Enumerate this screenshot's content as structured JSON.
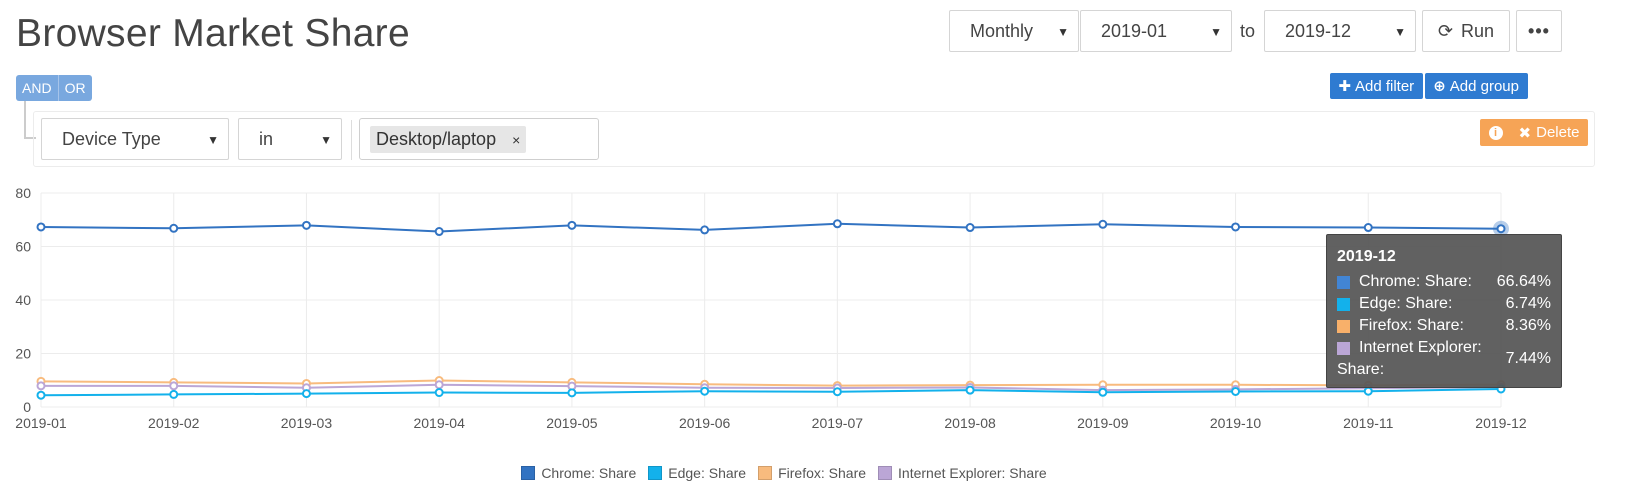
{
  "page": {
    "title": "Browser Market Share"
  },
  "toolbar": {
    "period": "Monthly",
    "from": "2019-01",
    "to_label": "to",
    "to": "2019-12",
    "run_label": "Run",
    "more_label": "•••"
  },
  "query": {
    "and_label": "AND",
    "or_label": "OR",
    "add_filter_label": "Add filter",
    "add_group_label": "Add group",
    "rule": {
      "field": "Device Type",
      "operator": "in",
      "value": "Desktop/laptop",
      "remove": "×"
    },
    "delete_label": "Delete"
  },
  "chart_data": {
    "type": "line",
    "x": [
      "2019-01",
      "2019-02",
      "2019-03",
      "2019-04",
      "2019-05",
      "2019-06",
      "2019-07",
      "2019-08",
      "2019-09",
      "2019-10",
      "2019-11",
      "2019-12"
    ],
    "ylim": [
      0,
      80
    ],
    "yticks": [
      0,
      20,
      40,
      60,
      80
    ],
    "grid": true,
    "legend_position": "bottom",
    "series": [
      {
        "name": "Chrome: Share",
        "color": "#3273c2",
        "values": [
          67.3,
          66.8,
          67.9,
          65.6,
          67.9,
          66.2,
          68.5,
          67.1,
          68.3,
          67.3,
          67.1,
          66.64
        ]
      },
      {
        "name": "Edge: Share",
        "color": "#13b1eb",
        "values": [
          4.4,
          4.7,
          5.0,
          5.4,
          5.3,
          5.9,
          5.7,
          6.3,
          5.5,
          5.8,
          5.9,
          6.74
        ]
      },
      {
        "name": "Firefox: Share",
        "color": "#f8bb7e",
        "values": [
          9.6,
          9.2,
          8.8,
          9.9,
          9.2,
          8.5,
          8.0,
          8.2,
          8.3,
          8.3,
          8.1,
          8.36
        ]
      },
      {
        "name": "Internet Explorer: Share",
        "color": "#bba6d6",
        "values": [
          7.9,
          7.9,
          7.2,
          8.3,
          7.8,
          7.2,
          7.1,
          7.3,
          6.3,
          6.6,
          7.0,
          7.44
        ]
      }
    ],
    "highlight_index": 11
  },
  "tooltip": {
    "title": "2019-12",
    "rows": [
      {
        "label": "Chrome: Share:",
        "value": "66.64%",
        "color": "#4285d4"
      },
      {
        "label": "Edge: Share:",
        "value": "6.74%",
        "color": "#13b1eb"
      },
      {
        "label": "Firefox: Share:",
        "value": "8.36%",
        "color": "#f8b06a"
      },
      {
        "label_line1": "Internet Explorer:",
        "label_line2": "Share:",
        "value": "7.44%",
        "color": "#bba6d6"
      }
    ]
  }
}
